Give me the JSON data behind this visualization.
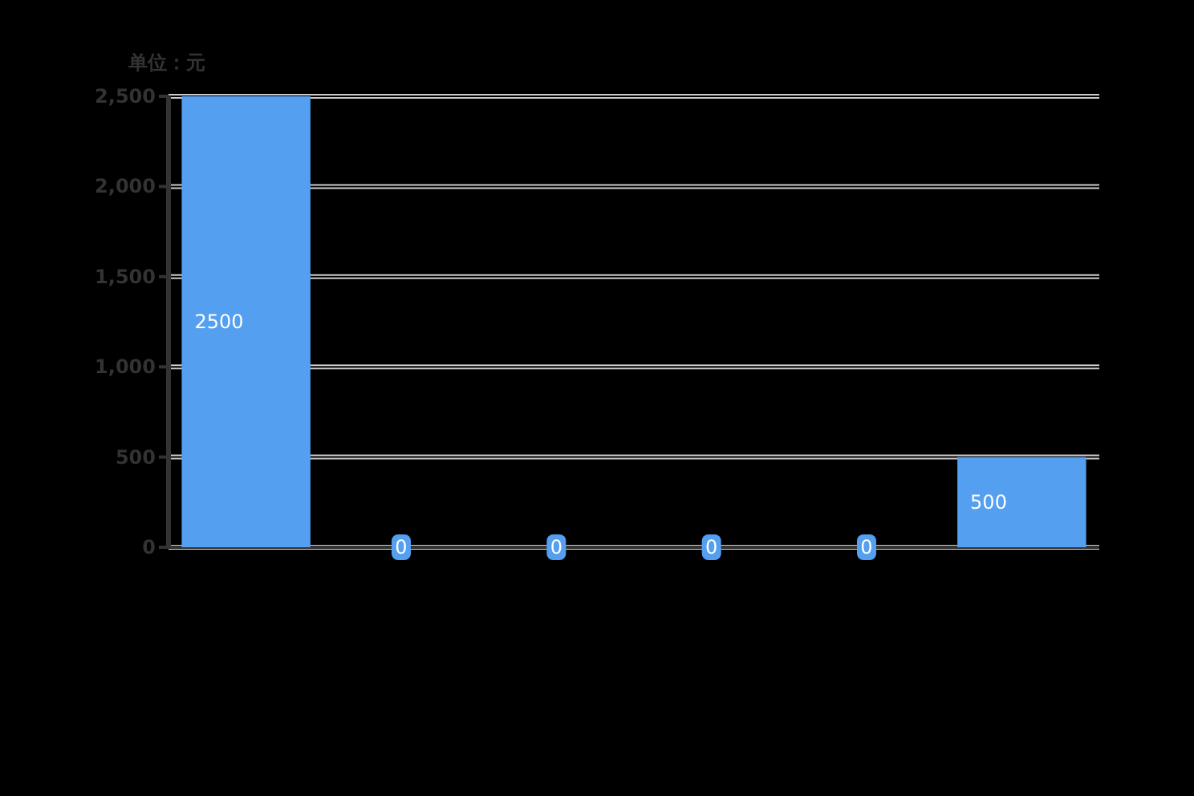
{
  "chart_data": {
    "type": "bar",
    "ylabel": "单位：元",
    "categories": [
      null,
      null,
      null,
      null,
      null,
      null
    ],
    "series": [
      {
        "color": "#559ff0",
        "values": [
          2500,
          0,
          0,
          0,
          0,
          500
        ]
      }
    ],
    "ylim": [
      0,
      2500
    ],
    "yticks": [
      0,
      500,
      {
        "value": 1000,
        "label": "1,000"
      },
      {
        "value": 1500,
        "label": "1,500"
      },
      {
        "value": 2000,
        "label": "2,000"
      },
      {
        "value": 2500,
        "label": "2,500"
      }
    ],
    "grid": "y",
    "data_labels": true
  }
}
